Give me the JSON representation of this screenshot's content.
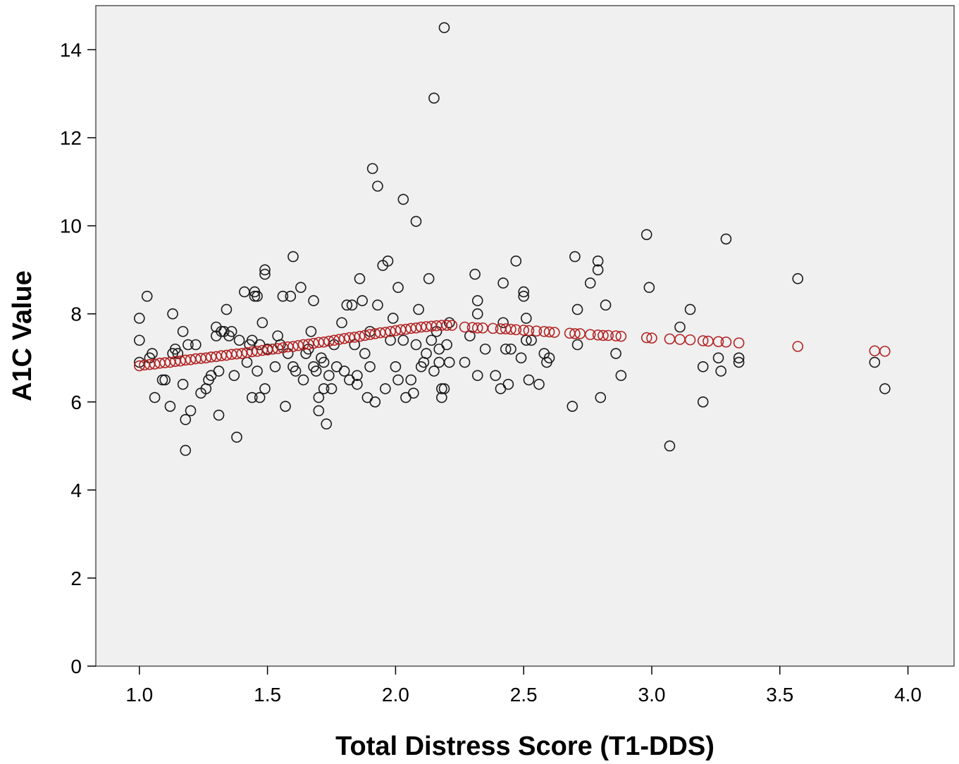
{
  "chart_data": {
    "type": "scatter",
    "title": "",
    "xlabel": "Total Distress Score (T1-DDS)",
    "ylabel": "A1C Value",
    "xlim": [
      0.83,
      4.18
    ],
    "ylim": [
      0,
      15
    ],
    "xticks": [
      "1.0",
      "1.5",
      "2.0",
      "2.5",
      "3.0",
      "3.5",
      "4.0"
    ],
    "yticks": [
      "0",
      "2",
      "4",
      "6",
      "8",
      "10",
      "12",
      "14"
    ],
    "grid": false,
    "legend": "none",
    "colors": {
      "background": "#f0f0f0",
      "observed": "#1a1a1a",
      "fitted": "#b22222"
    },
    "series": [
      {
        "marker": "open-circle",
        "color": "#1a1a1a",
        "points": [
          [
            1.0,
            7.9
          ],
          [
            1.0,
            7.4
          ],
          [
            1.0,
            6.9
          ],
          [
            1.03,
            8.4
          ],
          [
            1.04,
            7.0
          ],
          [
            1.05,
            7.1
          ],
          [
            1.06,
            6.1
          ],
          [
            1.09,
            6.5
          ],
          [
            1.1,
            6.5
          ],
          [
            1.12,
            5.9
          ],
          [
            1.13,
            8.0
          ],
          [
            1.13,
            7.1
          ],
          [
            1.14,
            7.2
          ],
          [
            1.15,
            7.1
          ],
          [
            1.17,
            6.4
          ],
          [
            1.17,
            7.6
          ],
          [
            1.18,
            5.6
          ],
          [
            1.18,
            4.9
          ],
          [
            1.19,
            7.3
          ],
          [
            1.2,
            5.8
          ],
          [
            1.22,
            7.3
          ],
          [
            1.24,
            6.2
          ],
          [
            1.26,
            6.3
          ],
          [
            1.27,
            6.5
          ],
          [
            1.28,
            6.6
          ],
          [
            1.3,
            7.5
          ],
          [
            1.3,
            7.7
          ],
          [
            1.31,
            6.7
          ],
          [
            1.31,
            5.7
          ],
          [
            1.32,
            7.6
          ],
          [
            1.33,
            7.6
          ],
          [
            1.34,
            8.1
          ],
          [
            1.35,
            7.5
          ],
          [
            1.36,
            7.6
          ],
          [
            1.37,
            6.6
          ],
          [
            1.38,
            5.2
          ],
          [
            1.39,
            7.4
          ],
          [
            1.41,
            8.5
          ],
          [
            1.42,
            6.9
          ],
          [
            1.43,
            7.3
          ],
          [
            1.44,
            6.1
          ],
          [
            1.44,
            7.4
          ],
          [
            1.45,
            8.4
          ],
          [
            1.45,
            8.5
          ],
          [
            1.46,
            8.4
          ],
          [
            1.46,
            6.7
          ],
          [
            1.47,
            6.1
          ],
          [
            1.47,
            7.3
          ],
          [
            1.48,
            7.8
          ],
          [
            1.49,
            9.0
          ],
          [
            1.49,
            8.9
          ],
          [
            1.49,
            6.3
          ],
          [
            1.5,
            7.2
          ],
          [
            1.52,
            7.2
          ],
          [
            1.53,
            6.8
          ],
          [
            1.54,
            7.5
          ],
          [
            1.55,
            7.3
          ],
          [
            1.56,
            8.4
          ],
          [
            1.57,
            5.9
          ],
          [
            1.58,
            7.1
          ],
          [
            1.59,
            8.4
          ],
          [
            1.6,
            9.3
          ],
          [
            1.6,
            6.8
          ],
          [
            1.61,
            6.7
          ],
          [
            1.63,
            8.6
          ],
          [
            1.64,
            6.5
          ],
          [
            1.65,
            7.1
          ],
          [
            1.66,
            7.2
          ],
          [
            1.67,
            7.6
          ],
          [
            1.68,
            6.8
          ],
          [
            1.68,
            8.3
          ],
          [
            1.69,
            6.7
          ],
          [
            1.7,
            6.1
          ],
          [
            1.7,
            5.8
          ],
          [
            1.71,
            7.0
          ],
          [
            1.72,
            6.9
          ],
          [
            1.72,
            6.3
          ],
          [
            1.73,
            5.5
          ],
          [
            1.74,
            6.6
          ],
          [
            1.75,
            6.3
          ],
          [
            1.76,
            7.3
          ],
          [
            1.77,
            6.8
          ],
          [
            1.79,
            7.8
          ],
          [
            1.8,
            6.7
          ],
          [
            1.81,
            8.2
          ],
          [
            1.82,
            6.5
          ],
          [
            1.83,
            8.2
          ],
          [
            1.84,
            7.3
          ],
          [
            1.85,
            6.6
          ],
          [
            1.85,
            6.4
          ],
          [
            1.86,
            8.8
          ],
          [
            1.87,
            8.3
          ],
          [
            1.88,
            7.1
          ],
          [
            1.89,
            6.1
          ],
          [
            1.9,
            6.8
          ],
          [
            1.9,
            7.6
          ],
          [
            1.91,
            11.3
          ],
          [
            1.92,
            6.0
          ],
          [
            1.93,
            10.9
          ],
          [
            1.93,
            8.2
          ],
          [
            1.95,
            9.1
          ],
          [
            1.96,
            6.3
          ],
          [
            1.97,
            9.2
          ],
          [
            1.98,
            7.4
          ],
          [
            1.99,
            7.9
          ],
          [
            2.0,
            6.8
          ],
          [
            2.01,
            6.5
          ],
          [
            2.01,
            8.6
          ],
          [
            2.03,
            7.4
          ],
          [
            2.03,
            10.6
          ],
          [
            2.04,
            6.1
          ],
          [
            2.06,
            6.5
          ],
          [
            2.07,
            6.2
          ],
          [
            2.08,
            7.3
          ],
          [
            2.08,
            10.1
          ],
          [
            2.09,
            8.1
          ],
          [
            2.1,
            6.8
          ],
          [
            2.11,
            6.9
          ],
          [
            2.12,
            7.1
          ],
          [
            2.13,
            8.8
          ],
          [
            2.14,
            7.4
          ],
          [
            2.15,
            12.9
          ],
          [
            2.15,
            6.7
          ],
          [
            2.16,
            7.6
          ],
          [
            2.17,
            6.9
          ],
          [
            2.17,
            7.2
          ],
          [
            2.18,
            6.3
          ],
          [
            2.18,
            6.1
          ],
          [
            2.19,
            14.5
          ],
          [
            2.19,
            6.3
          ],
          [
            2.2,
            7.3
          ],
          [
            2.21,
            7.8
          ],
          [
            2.21,
            6.9
          ],
          [
            2.27,
            6.9
          ],
          [
            2.29,
            7.5
          ],
          [
            2.31,
            8.9
          ],
          [
            2.32,
            8.3
          ],
          [
            2.32,
            8.0
          ],
          [
            2.32,
            6.6
          ],
          [
            2.35,
            7.2
          ],
          [
            2.39,
            6.6
          ],
          [
            2.41,
            6.3
          ],
          [
            2.42,
            8.7
          ],
          [
            2.42,
            7.8
          ],
          [
            2.43,
            7.2
          ],
          [
            2.44,
            6.4
          ],
          [
            2.45,
            7.2
          ],
          [
            2.47,
            9.2
          ],
          [
            2.49,
            7.0
          ],
          [
            2.5,
            8.5
          ],
          [
            2.5,
            8.4
          ],
          [
            2.51,
            7.9
          ],
          [
            2.51,
            7.4
          ],
          [
            2.52,
            6.5
          ],
          [
            2.53,
            7.4
          ],
          [
            2.56,
            6.4
          ],
          [
            2.58,
            7.1
          ],
          [
            2.59,
            6.9
          ],
          [
            2.6,
            7.0
          ],
          [
            2.69,
            5.9
          ],
          [
            2.7,
            9.3
          ],
          [
            2.71,
            8.1
          ],
          [
            2.71,
            7.3
          ],
          [
            2.76,
            8.7
          ],
          [
            2.79,
            9.2
          ],
          [
            2.79,
            9.0
          ],
          [
            2.8,
            6.1
          ],
          [
            2.82,
            8.2
          ],
          [
            2.86,
            7.1
          ],
          [
            2.88,
            6.6
          ],
          [
            2.98,
            9.8
          ],
          [
            2.99,
            8.6
          ],
          [
            3.07,
            5.0
          ],
          [
            3.11,
            7.7
          ],
          [
            3.15,
            8.1
          ],
          [
            3.2,
            6.8
          ],
          [
            3.2,
            6.0
          ],
          [
            3.26,
            7.0
          ],
          [
            3.27,
            6.7
          ],
          [
            3.29,
            9.7
          ],
          [
            3.34,
            7.0
          ],
          [
            3.34,
            6.9
          ],
          [
            3.57,
            8.8
          ],
          [
            3.87,
            6.9
          ],
          [
            3.91,
            6.3
          ]
        ]
      },
      {
        "marker": "open-circle",
        "color": "#b22222",
        "points": [
          [
            1.0,
            6.82
          ],
          [
            1.02,
            6.84
          ],
          [
            1.04,
            6.85
          ],
          [
            1.06,
            6.86
          ],
          [
            1.08,
            6.88
          ],
          [
            1.1,
            6.89
          ],
          [
            1.12,
            6.9
          ],
          [
            1.14,
            6.92
          ],
          [
            1.16,
            6.93
          ],
          [
            1.18,
            6.95
          ],
          [
            1.2,
            6.96
          ],
          [
            1.22,
            6.98
          ],
          [
            1.24,
            6.99
          ],
          [
            1.26,
            7.0
          ],
          [
            1.28,
            7.02
          ],
          [
            1.3,
            7.03
          ],
          [
            1.32,
            7.05
          ],
          [
            1.34,
            7.06
          ],
          [
            1.36,
            7.08
          ],
          [
            1.38,
            7.09
          ],
          [
            1.4,
            7.1
          ],
          [
            1.42,
            7.12
          ],
          [
            1.44,
            7.14
          ],
          [
            1.46,
            7.15
          ],
          [
            1.48,
            7.17
          ],
          [
            1.5,
            7.18
          ],
          [
            1.52,
            7.2
          ],
          [
            1.54,
            7.21
          ],
          [
            1.56,
            7.23
          ],
          [
            1.58,
            7.25
          ],
          [
            1.6,
            7.26
          ],
          [
            1.62,
            7.28
          ],
          [
            1.64,
            7.3
          ],
          [
            1.66,
            7.31
          ],
          [
            1.68,
            7.33
          ],
          [
            1.7,
            7.35
          ],
          [
            1.72,
            7.36
          ],
          [
            1.74,
            7.38
          ],
          [
            1.76,
            7.4
          ],
          [
            1.78,
            7.42
          ],
          [
            1.8,
            7.44
          ],
          [
            1.82,
            7.46
          ],
          [
            1.84,
            7.47
          ],
          [
            1.86,
            7.49
          ],
          [
            1.88,
            7.51
          ],
          [
            1.9,
            7.53
          ],
          [
            1.92,
            7.55
          ],
          [
            1.94,
            7.57
          ],
          [
            1.96,
            7.58
          ],
          [
            1.98,
            7.6
          ],
          [
            2.0,
            7.62
          ],
          [
            2.02,
            7.64
          ],
          [
            2.04,
            7.65
          ],
          [
            2.06,
            7.67
          ],
          [
            2.08,
            7.68
          ],
          [
            2.1,
            7.7
          ],
          [
            2.12,
            7.71
          ],
          [
            2.14,
            7.72
          ],
          [
            2.16,
            7.73
          ],
          [
            2.18,
            7.74
          ],
          [
            2.2,
            7.74
          ],
          [
            2.22,
            7.74
          ],
          [
            2.27,
            7.7
          ],
          [
            2.3,
            7.69
          ],
          [
            2.32,
            7.68
          ],
          [
            2.34,
            7.68
          ],
          [
            2.38,
            7.67
          ],
          [
            2.41,
            7.66
          ],
          [
            2.43,
            7.66
          ],
          [
            2.45,
            7.65
          ],
          [
            2.47,
            7.64
          ],
          [
            2.5,
            7.63
          ],
          [
            2.52,
            7.62
          ],
          [
            2.55,
            7.61
          ],
          [
            2.58,
            7.6
          ],
          [
            2.6,
            7.59
          ],
          [
            2.62,
            7.58
          ],
          [
            2.68,
            7.56
          ],
          [
            2.7,
            7.55
          ],
          [
            2.72,
            7.55
          ],
          [
            2.76,
            7.53
          ],
          [
            2.79,
            7.52
          ],
          [
            2.81,
            7.51
          ],
          [
            2.83,
            7.51
          ],
          [
            2.86,
            7.5
          ],
          [
            2.88,
            7.49
          ],
          [
            2.98,
            7.46
          ],
          [
            3.0,
            7.45
          ],
          [
            3.07,
            7.43
          ],
          [
            3.11,
            7.42
          ],
          [
            3.15,
            7.41
          ],
          [
            3.2,
            7.39
          ],
          [
            3.22,
            7.38
          ],
          [
            3.26,
            7.37
          ],
          [
            3.29,
            7.36
          ],
          [
            3.34,
            7.34
          ],
          [
            3.57,
            7.26
          ],
          [
            3.87,
            7.16
          ],
          [
            3.91,
            7.15
          ]
        ]
      }
    ]
  }
}
